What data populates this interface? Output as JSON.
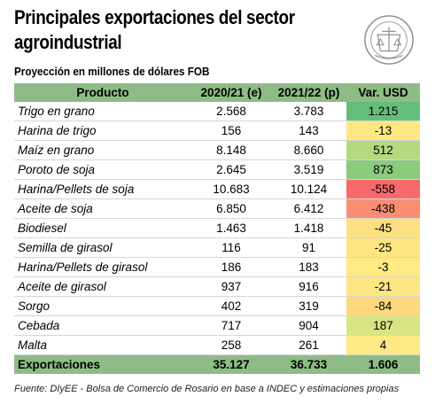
{
  "header": {
    "title_line1": "Principales exportaciones del sector",
    "title_line2": "agroindustrial",
    "subtitle": "Proyección en millones de dólares FOB",
    "logo_text": "BOLSA DE COMERCIO DE ROSARIO"
  },
  "table": {
    "columns": [
      "Producto",
      "2020/21 (e)",
      "2021/22 (p)",
      "Var. USD"
    ],
    "rows": [
      {
        "producto": "Trigo en grano",
        "y2020": "2.568",
        "y2021": "3.783",
        "var": "1.215",
        "color": "#63be7b"
      },
      {
        "producto": "Harina de trigo",
        "y2020": "156",
        "y2021": "143",
        "var": "-13",
        "color": "#fee883"
      },
      {
        "producto": "Maíz en grano",
        "y2020": "8.148",
        "y2021": "8.660",
        "var": "512",
        "color": "#b6d980"
      },
      {
        "producto": "Poroto de soja",
        "y2020": "2.645",
        "y2021": "3.519",
        "var": "873",
        "color": "#8bcb7e"
      },
      {
        "producto": "Harina/Pellets de soja",
        "y2020": "10.683",
        "y2021": "10.124",
        "var": "-558",
        "color": "#f8696b"
      },
      {
        "producto": "Aceite de soja",
        "y2020": "6.850",
        "y2021": "6.412",
        "var": "-438",
        "color": "#fa8e72"
      },
      {
        "producto": "Biodiesel",
        "y2020": "1.463",
        "y2021": "1.418",
        "var": "-45",
        "color": "#fde081"
      },
      {
        "producto": "Semilla de girasol",
        "y2020": "116",
        "y2021": "91",
        "var": "-25",
        "color": "#fee582"
      },
      {
        "producto": "Harina/Pellets de girasol",
        "y2020": "186",
        "y2021": "183",
        "var": "-3",
        "color": "#ffea84"
      },
      {
        "producto": "Aceite de girasol",
        "y2020": "937",
        "y2021": "916",
        "var": "-21",
        "color": "#fee683"
      },
      {
        "producto": "Sorgo",
        "y2020": "402",
        "y2021": "319",
        "var": "-84",
        "color": "#fdd87f"
      },
      {
        "producto": "Cebada",
        "y2020": "717",
        "y2021": "904",
        "var": "187",
        "color": "#dbe482"
      },
      {
        "producto": "Malta",
        "y2020": "258",
        "y2021": "261",
        "var": "4",
        "color": "#feea84"
      }
    ],
    "total": {
      "producto": "Exportaciones",
      "y2020": "35.127",
      "y2021": "36.733",
      "var": "1.606"
    }
  },
  "footer": {
    "source": "Fuente: DIyEE - Bolsa de Comercio de Rosario en base a INDEC y estimaciones propias"
  }
}
